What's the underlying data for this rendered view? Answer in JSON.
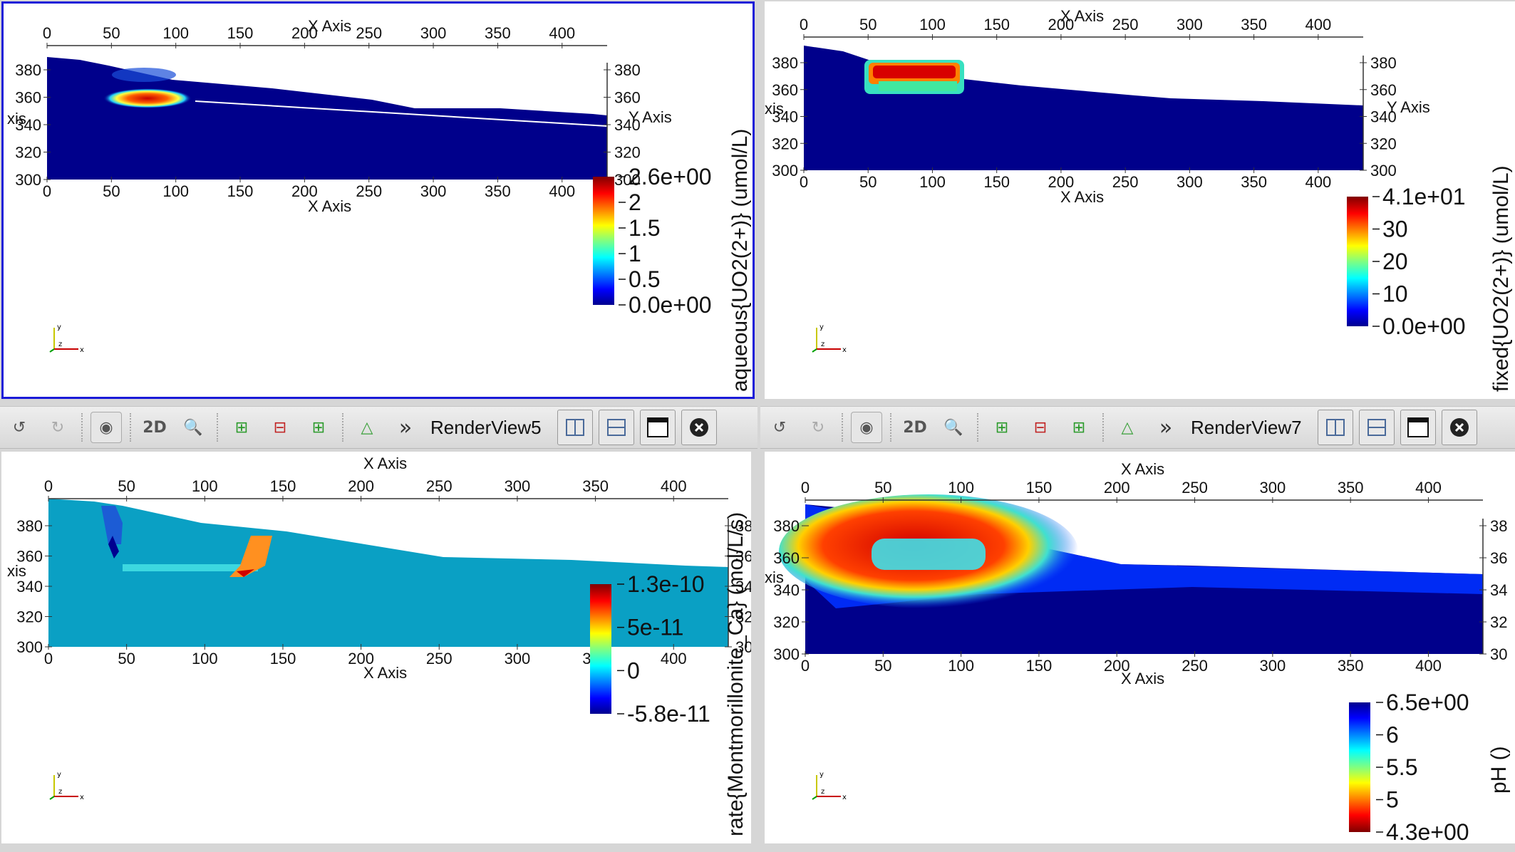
{
  "views": [
    {
      "id": "tl",
      "active": true,
      "scalar_title": "aqueous{UO2(2+)} (umol/L)",
      "colorbar": {
        "colormap": "jet",
        "labels": [
          "2.6e+00",
          "2",
          "1.5",
          "1",
          "0.5",
          "0.0e+00"
        ]
      },
      "x_ticks": [
        "0",
        "50",
        "100",
        "150",
        "200",
        "250",
        "300",
        "350",
        "400"
      ],
      "y_ticks": [
        "380",
        "360",
        "340",
        "320",
        "300"
      ],
      "right_y_ticks": [
        "380",
        "360",
        "340",
        "320",
        "300"
      ],
      "x_axis_title": "X Axis",
      "y_axis_title": "Y Axis",
      "left_y_title_fragment": "xis",
      "axes_widget": {
        "x": "x",
        "y": "y",
        "z": "z"
      }
    },
    {
      "id": "tr",
      "active": false,
      "scalar_title": "fixed{UO2(2+)} (umol/L)",
      "colorbar": {
        "colormap": "jet",
        "labels": [
          "4.1e+01",
          "30",
          "20",
          "10",
          "0.0e+00"
        ]
      },
      "x_ticks": [
        "0",
        "50",
        "100",
        "150",
        "200",
        "250",
        "300",
        "350",
        "400"
      ],
      "y_ticks": [
        "380",
        "360",
        "340",
        "320",
        "300"
      ],
      "right_y_ticks": [
        "380",
        "360",
        "340",
        "320",
        "300"
      ],
      "x_axis_title": "X Axis",
      "y_axis_title": "Y Axis",
      "left_y_title_fragment": "xis",
      "axes_widget": {
        "x": "x",
        "y": "y",
        "z": "z"
      }
    },
    {
      "id": "bl",
      "active": false,
      "scalar_title": "rate{Montmorillonite_Ca} (mol/L/s)",
      "colorbar": {
        "colormap": "jet",
        "labels": [
          "1.3e-10",
          "5e-11",
          "0",
          "-5.8e-11"
        ]
      },
      "x_ticks": [
        "0",
        "50",
        "100",
        "150",
        "200",
        "250",
        "300",
        "350",
        "400"
      ],
      "y_ticks": [
        "380",
        "360",
        "340",
        "320",
        "300"
      ],
      "right_y_ticks": [
        "38",
        "36",
        "34",
        "32",
        "30"
      ],
      "x_axis_title": "X Axis",
      "left_y_title_fragment": "xis",
      "axes_widget": {
        "x": "x",
        "y": "y",
        "z": "z"
      }
    },
    {
      "id": "br",
      "active": false,
      "scalar_title": "pH ()",
      "colorbar": {
        "colormap": "jet_reversed",
        "labels": [
          "6.5e+00",
          "6",
          "5.5",
          "5",
          "4.3e+00"
        ]
      },
      "x_ticks": [
        "0",
        "50",
        "100",
        "150",
        "200",
        "250",
        "300",
        "350",
        "400"
      ],
      "y_ticks": [
        "380",
        "360",
        "340",
        "320",
        "300"
      ],
      "right_y_ticks": [
        "38",
        "36",
        "34",
        "32",
        "30"
      ],
      "x_axis_title": "X Axis",
      "left_y_title_fragment": "xis",
      "axes_widget": {
        "x": "x",
        "y": "y",
        "z": "z"
      }
    }
  ],
  "toolbars": [
    {
      "id": "left",
      "title": "RenderView5",
      "mode_2d": "2D",
      "more": "»"
    },
    {
      "id": "right",
      "title": "RenderView7",
      "mode_2d": "2D",
      "more": "»"
    }
  ],
  "colors": {
    "active_border": "#1a1ad8",
    "domain_dark": "#00008b",
    "rate_background": "#0aa0c4"
  }
}
